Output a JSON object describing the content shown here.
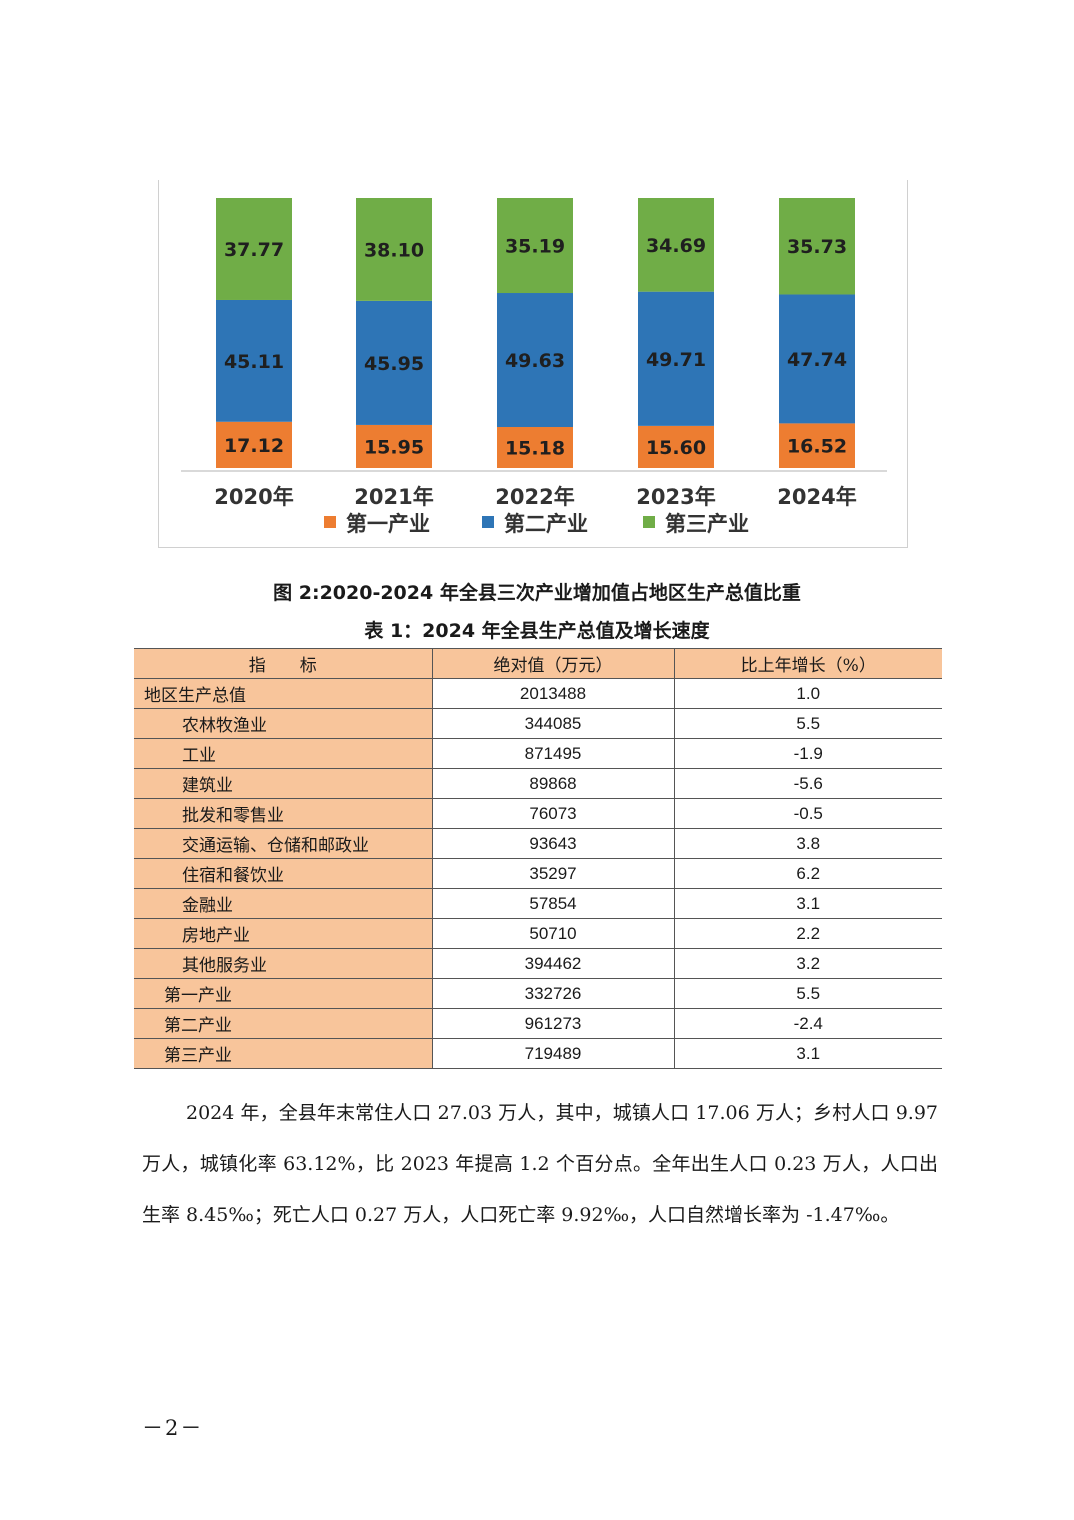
{
  "chart_data": {
    "type": "bar",
    "stacked": true,
    "categories": [
      "2020年",
      "2021年",
      "2022年",
      "2023年",
      "2024年"
    ],
    "series": [
      {
        "name": "第一产业",
        "color": "#ed7d31",
        "values": [
          17.12,
          15.95,
          15.18,
          15.6,
          16.52
        ],
        "labels": [
          "17.12",
          "15.95",
          "15.18",
          "15.60",
          "16.52"
        ]
      },
      {
        "name": "第二产业",
        "color": "#2e75b6",
        "values": [
          45.11,
          45.95,
          49.63,
          49.71,
          47.74
        ],
        "labels": [
          "45.11",
          "45.95",
          "49.63",
          "49.71",
          "47.74"
        ]
      },
      {
        "name": "第三产业",
        "color": "#70ad47",
        "values": [
          37.77,
          38.1,
          35.19,
          34.69,
          35.73
        ],
        "labels": [
          "37.77",
          "38.10",
          "35.19",
          "34.69",
          "35.73"
        ]
      }
    ],
    "ylim": [
      0,
      100
    ],
    "legend_position": "bottom",
    "grid": false
  },
  "figure_caption": "图 2:2020-2024 年全县三次产业增加值占地区生产总值比重",
  "table": {
    "caption": "表 1：2024 年全县生产总值及增长速度",
    "headers": [
      "指　　标",
      "绝对值（万元）",
      "比上年增长（%）"
    ],
    "rows": [
      {
        "name": "地区生产总值",
        "level": 0,
        "value": "2013488",
        "growth": "1.0"
      },
      {
        "name": "农林牧渔业",
        "level": 1,
        "value": "344085",
        "growth": "5.5"
      },
      {
        "name": "工业",
        "level": 1,
        "value": "871495",
        "growth": "-1.9"
      },
      {
        "name": "建筑业",
        "level": 1,
        "value": "89868",
        "growth": "-5.6"
      },
      {
        "name": "批发和零售业",
        "level": 1,
        "value": "76073",
        "growth": "-0.5"
      },
      {
        "name": "交通运输、仓储和邮政业",
        "level": 1,
        "value": "93643",
        "growth": "3.8"
      },
      {
        "name": "住宿和餐饮业",
        "level": 1,
        "value": "35297",
        "growth": "6.2"
      },
      {
        "name": "金融业",
        "level": 1,
        "value": "57854",
        "growth": "3.1"
      },
      {
        "name": "房地产业",
        "level": 1,
        "value": "50710",
        "growth": "2.2"
      },
      {
        "name": "其他服务业",
        "level": 1,
        "value": "394462",
        "growth": "3.2"
      },
      {
        "name": "第一产业",
        "level": 2,
        "value": "332726",
        "growth": "5.5"
      },
      {
        "name": "第二产业",
        "level": 2,
        "value": "961273",
        "growth": "-2.4"
      },
      {
        "name": "第三产业",
        "level": 2,
        "value": "719489",
        "growth": "3.1"
      }
    ]
  },
  "paragraph": "2024 年，全县年末常住人口 27.03 万人，其中，城镇人口 17.06 万人；乡村人口 9.97 万人，城镇化率 63.12%，比 2023 年提高 1.2 个百分点。全年出生人口 0.23 万人，人口出生率 8.45‰；死亡人口 0.27 万人，人口死亡率 9.92‰，人口自然增长率为 -1.47‰。",
  "page_number": "－2－"
}
